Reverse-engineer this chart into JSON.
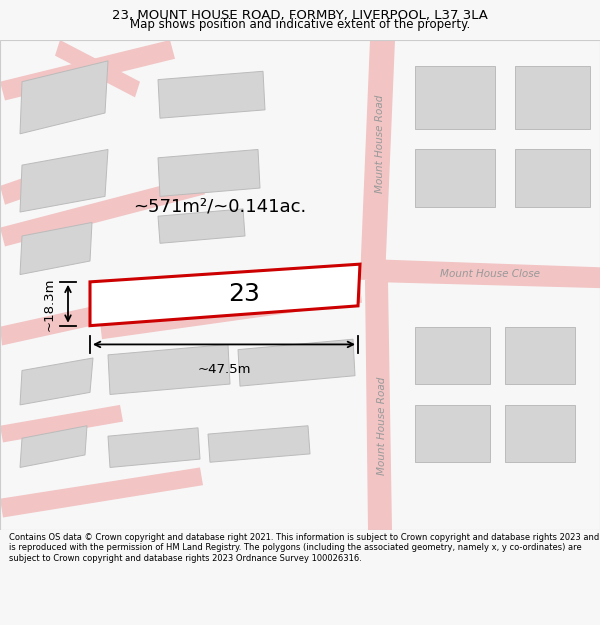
{
  "title_line1": "23, MOUNT HOUSE ROAD, FORMBY, LIVERPOOL, L37 3LA",
  "title_line2": "Map shows position and indicative extent of the property.",
  "footer_text": "Contains OS data © Crown copyright and database right 2021. This information is subject to Crown copyright and database rights 2023 and is reproduced with the permission of HM Land Registry. The polygons (including the associated geometry, namely x, y co-ordinates) are subject to Crown copyright and database rights 2023 Ordnance Survey 100026316.",
  "bg_color": "#f7f7f7",
  "map_bg": "#eeeeee",
  "road_color": "#f2c4c4",
  "building_fill": "#d4d4d4",
  "building_edge": "#bbbbbb",
  "plot_fill": "#ffffff",
  "plot_edge": "#cc0000",
  "plot_edge_width": 2.2,
  "plot_label": "23",
  "area_label": "~571m²/~0.141ac.",
  "width_label": "~47.5m",
  "height_label": "~18.3m",
  "road_label_top": "Mount House Road",
  "road_label_bot": "Mount House Road",
  "road_label_close": "Mount House Close",
  "title_fontsize": 9.5,
  "subtitle_fontsize": 8.5,
  "footer_fontsize": 6.0
}
